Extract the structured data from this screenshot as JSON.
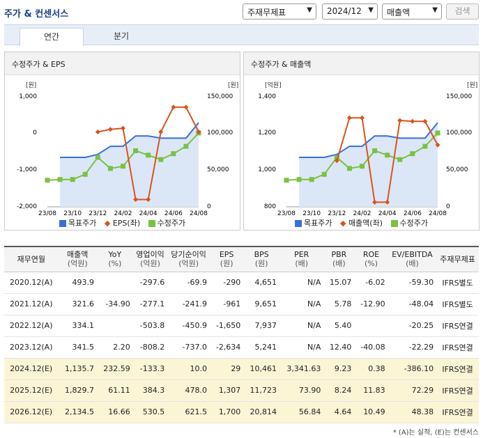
{
  "header": {
    "title": "주가 & 컨센서스",
    "select_type": "주재무제표",
    "select_period": "2024/12",
    "select_metric": "매출액",
    "search_button": "검색"
  },
  "tabs": [
    {
      "label": "연간",
      "active": true
    },
    {
      "label": "분기",
      "active": false
    }
  ],
  "chart_left": {
    "title": "수정주가 & EPS",
    "y_left_unit": "[원]",
    "y_right_unit": "[원]",
    "y_left_ticks": [
      "1,000",
      "0",
      "-1,000",
      "-2,000"
    ],
    "y_right_ticks": [
      "150,000",
      "100,000",
      "50,000",
      "0"
    ],
    "x_ticks": [
      "23/08",
      "23/10",
      "23/12",
      "24/02",
      "24/04",
      "24/06",
      "24/08"
    ],
    "legend": [
      "목표주가",
      "EPS(좌)",
      "수정주가"
    ]
  },
  "chart_right": {
    "title": "수정주가 & 매출액",
    "y_left_unit": "[억원]",
    "y_right_unit": "[원]",
    "y_left_ticks": [
      "1,400",
      "1,200",
      "1,000",
      "800"
    ],
    "y_right_ticks": [
      "150,000",
      "100,000",
      "50,000",
      "0"
    ],
    "x_ticks": [
      "23/08",
      "23/10",
      "23/12",
      "24/02",
      "24/04",
      "24/06",
      "24/08"
    ],
    "legend": [
      "목표주가",
      "매출액(좌)",
      "수정주가"
    ]
  },
  "chart_data": [
    {
      "type": "line",
      "title": "수정주가 & EPS",
      "x": [
        "23/08",
        "23/09",
        "23/10",
        "23/11",
        "23/12",
        "24/01",
        "24/02",
        "24/03",
        "24/04",
        "24/05",
        "24/06",
        "24/07",
        "24/08"
      ],
      "series": [
        {
          "name": "목표주가",
          "axis": "right",
          "values": [
            null,
            67000,
            67000,
            67000,
            71000,
            82000,
            82000,
            96000,
            96000,
            93000,
            93000,
            93000,
            114000
          ]
        },
        {
          "name": "EPS(좌)",
          "axis": "left",
          "values": [
            null,
            null,
            null,
            null,
            29,
            100,
            129,
            -1802,
            -1802,
            29,
            700,
            700,
            29
          ]
        },
        {
          "name": "수정주가",
          "axis": "right",
          "values": [
            36000,
            37000,
            37000,
            44000,
            67000,
            52000,
            55000,
            76000,
            70000,
            64000,
            72000,
            82000,
            100000
          ]
        }
      ],
      "ylim_left": [
        -2000,
        1000
      ],
      "ylim_right": [
        0,
        150000
      ]
    },
    {
      "type": "line",
      "title": "수정주가 & 매출액",
      "x": [
        "23/08",
        "23/09",
        "23/10",
        "23/11",
        "23/12",
        "24/01",
        "24/02",
        "24/03",
        "24/04",
        "24/05",
        "24/06",
        "24/07",
        "24/08"
      ],
      "series": [
        {
          "name": "목표주가",
          "axis": "right",
          "values": [
            null,
            67000,
            67000,
            67000,
            71000,
            82000,
            82000,
            96000,
            96000,
            93000,
            93000,
            93000,
            114000
          ]
        },
        {
          "name": "매출액(좌)",
          "axis": "left",
          "values": [
            null,
            null,
            null,
            null,
            1050,
            1282,
            1282,
            825,
            825,
            1268,
            1263,
            1263,
            1135
          ]
        },
        {
          "name": "수정주가",
          "axis": "right",
          "values": [
            36000,
            37000,
            37000,
            44000,
            67000,
            52000,
            55000,
            76000,
            70000,
            64000,
            72000,
            82000,
            100000
          ]
        }
      ],
      "ylim_left": [
        800,
        1400
      ],
      "ylim_right": [
        0,
        150000
      ]
    }
  ],
  "table": {
    "headers": [
      {
        "main": "재무연월",
        "sub": ""
      },
      {
        "main": "매출액",
        "sub": "(억원)"
      },
      {
        "main": "YoY",
        "sub": "(%)"
      },
      {
        "main": "영업이익",
        "sub": "(억원)"
      },
      {
        "main": "당기순이익",
        "sub": "(억원)"
      },
      {
        "main": "EPS",
        "sub": "(원)"
      },
      {
        "main": "BPS",
        "sub": "(원)"
      },
      {
        "main": "PER",
        "sub": "(배)"
      },
      {
        "main": "PBR",
        "sub": "(배)"
      },
      {
        "main": "ROE",
        "sub": "(%)"
      },
      {
        "main": "EV/EBITDA",
        "sub": "(배)"
      },
      {
        "main": "주재무제표",
        "sub": ""
      }
    ],
    "rows": [
      {
        "est": false,
        "cells": [
          "2020.12(A)",
          "493.9",
          "",
          "-297.6",
          "-69.9",
          "-290",
          "4,651",
          "N/A",
          "15.07",
          "-6.02",
          "-59.30",
          "IFRS별도"
        ]
      },
      {
        "est": false,
        "cells": [
          "2021.12(A)",
          "321.6",
          "-34.90",
          "-277.1",
          "-241.9",
          "-961",
          "9,651",
          "N/A",
          "5.78",
          "-12.90",
          "-48.04",
          "IFRS별도"
        ]
      },
      {
        "est": false,
        "cells": [
          "2022.12(A)",
          "334.1",
          "",
          "-503.8",
          "-450.9",
          "-1,650",
          "7,937",
          "N/A",
          "5.40",
          "",
          "-20.25",
          "IFRS연결"
        ]
      },
      {
        "est": false,
        "cells": [
          "2023.12(A)",
          "341.5",
          "2.20",
          "-808.2",
          "-737.0",
          "-2,634",
          "5,241",
          "N/A",
          "12.40",
          "-40.08",
          "-22.29",
          "IFRS연결"
        ]
      },
      {
        "est": true,
        "cells": [
          "2024.12(E)",
          "1,135.7",
          "232.59",
          "-133.3",
          "10.0",
          "29",
          "10,461",
          "3,341.63",
          "9.23",
          "0.38",
          "-386.10",
          "IFRS연결"
        ]
      },
      {
        "est": true,
        "cells": [
          "2025.12(E)",
          "1,829.7",
          "61.11",
          "384.3",
          "478.0",
          "1,307",
          "11,723",
          "73.90",
          "8.24",
          "11.83",
          "72.29",
          "IFRS연결"
        ]
      },
      {
        "est": true,
        "cells": [
          "2026.12(E)",
          "2,134.5",
          "16.66",
          "530.5",
          "621.5",
          "1,700",
          "20,814",
          "56.84",
          "4.64",
          "10.49",
          "48.38",
          "IFRS연결"
        ]
      }
    ]
  },
  "footnote": "* (A)는 실적, (E)는 컨센서스",
  "colors": {
    "target": "#3a6fd8",
    "left_series": "#d9531e",
    "price": "#7ac143",
    "area": "#dbe7f7"
  }
}
